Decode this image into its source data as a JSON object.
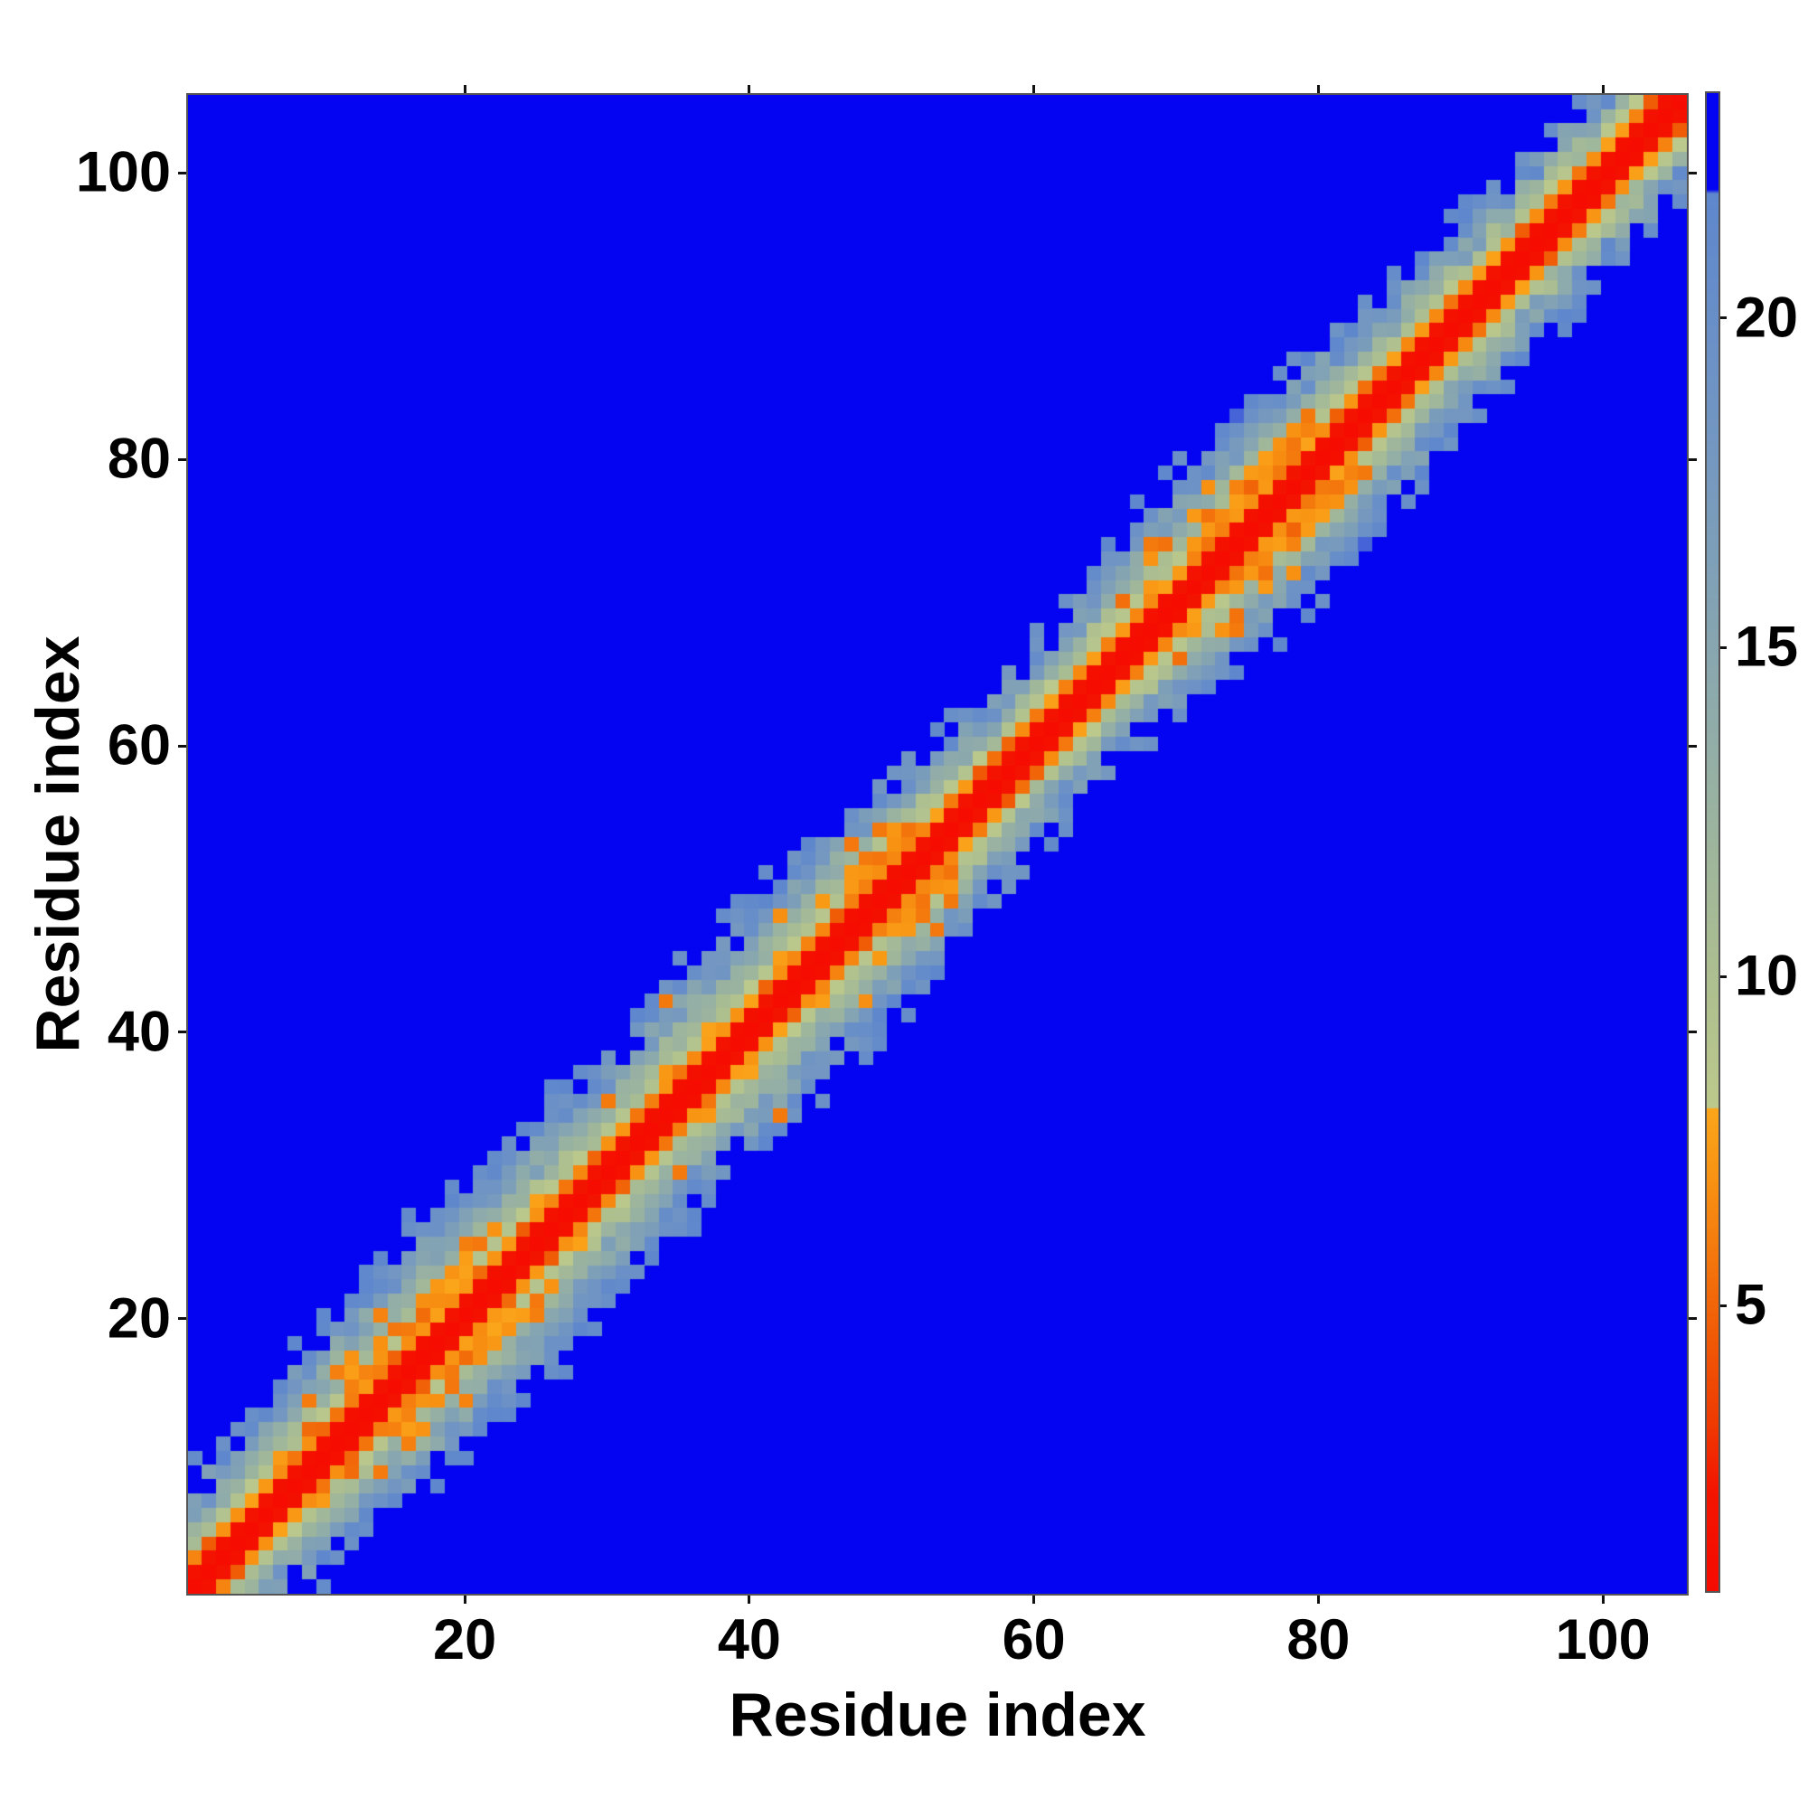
{
  "figure": {
    "background": "#ffffff",
    "xlabel": "Residue index",
    "ylabel": "Residue index"
  },
  "chart_data": {
    "type": "heatmap",
    "title": "",
    "xlabel": "Residue index",
    "ylabel": "Residue index",
    "x_ticks": [
      20,
      40,
      60,
      80,
      100
    ],
    "y_ticks": [
      20,
      40,
      60,
      80,
      100
    ],
    "x_range": [
      0.55,
      105.9
    ],
    "y_range": [
      0.8,
      105.45
    ],
    "grid": false,
    "legend": "none",
    "n_residues": 105,
    "matrix_description": "symmetric residue-residue distance map: red core along the main diagonal, orange at sequence separation 2, green-to-steel-blue band fading out by separation 6-10, saturated blue elsewhere",
    "colorbar": {
      "ticks": [
        5,
        10,
        15,
        20
      ],
      "vmin": 0.66,
      "vmax": 23.42,
      "blue_clamp": 21.95,
      "position": "right"
    },
    "colormap_stops": [
      [
        0.66,
        "#f60b00"
      ],
      [
        2.2,
        "#f31500"
      ],
      [
        3.2,
        "#ef3a02"
      ],
      [
        4.6,
        "#f05c06"
      ],
      [
        6.0,
        "#f57d0e"
      ],
      [
        7.0,
        "#f89413"
      ],
      [
        7.99,
        "#fba51a"
      ],
      [
        8.0,
        "#bcc98c"
      ],
      [
        10.0,
        "#adbf90"
      ],
      [
        12.0,
        "#9db59d"
      ],
      [
        14.0,
        "#8fabaa"
      ],
      [
        16.0,
        "#80a1b6"
      ],
      [
        18.0,
        "#7497c1"
      ],
      [
        20.0,
        "#698fc8"
      ],
      [
        21.9,
        "#5e87cd"
      ],
      [
        21.96,
        "#0404f2"
      ],
      [
        23.42,
        "#0404f2"
      ]
    ],
    "background_blue": "#0404f2",
    "band_model": {
      "n": 105,
      "diag_values": {
        "k0": 0.8,
        "k1": 1.6,
        "k2": 6.7
      },
      "envelope_points": [
        [
          1,
          6.5
        ],
        [
          5,
          7
        ],
        [
          9,
          8.5
        ],
        [
          13,
          9.2
        ],
        [
          17,
          10
        ],
        [
          21,
          10
        ],
        [
          25,
          9.5
        ],
        [
          29,
          8.2
        ],
        [
          33,
          8.6
        ],
        [
          37,
          9
        ],
        [
          41,
          8.6
        ],
        [
          45,
          9
        ],
        [
          49,
          9.6
        ],
        [
          53,
          9
        ],
        [
          57,
          6.8
        ],
        [
          61,
          6.2
        ],
        [
          65,
          7.6
        ],
        [
          69,
          8.6
        ],
        [
          73,
          9
        ],
        [
          77,
          9.6
        ],
        [
          81,
          9
        ],
        [
          85,
          7.6
        ],
        [
          89,
          6.6
        ],
        [
          93,
          6.6
        ],
        [
          97,
          6.8
        ],
        [
          101,
          7
        ],
        [
          105,
          7
        ]
      ],
      "envelope_jitter": 1.6,
      "value_noise": 1.4,
      "band_base": 6.8,
      "band_span": 15.1,
      "band_exponent": 1.05,
      "helix_ranges": [
        [
          13,
          26
        ],
        [
          46,
          54
        ],
        [
          71,
          82
        ]
      ],
      "helix_offsets": [
        3,
        4
      ],
      "helix_value": 6.3,
      "helix_prob": 0.6,
      "speckle_zones": [
        [
          9,
          26
        ],
        [
          44,
          55
        ],
        [
          66,
          84
        ]
      ],
      "speckle_prob": 0.14,
      "speckle_value": 6.4,
      "orange_spots": [
        [
          9,
          14
        ],
        [
          12,
          17
        ],
        [
          14,
          20
        ],
        [
          20,
          25
        ],
        [
          30,
          35
        ],
        [
          34,
          42
        ],
        [
          42,
          48
        ],
        [
          47,
          53
        ],
        [
          68,
          73
        ],
        [
          69,
          74
        ],
        [
          72,
          78
        ],
        [
          77,
          81
        ],
        [
          79,
          83
        ]
      ]
    }
  }
}
